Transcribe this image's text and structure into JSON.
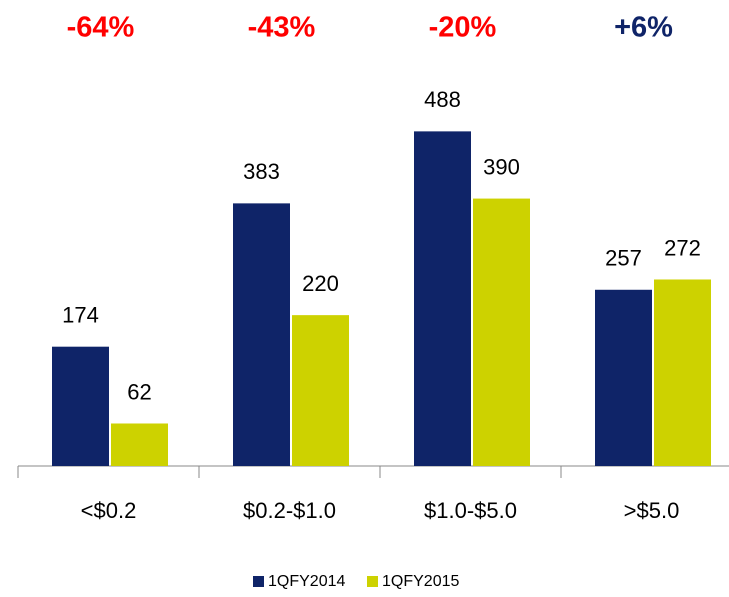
{
  "chart_data": {
    "type": "bar",
    "categories": [
      "<$0.2",
      "$0.2-$1.0",
      "$1.0-$5.0",
      ">$5.0"
    ],
    "series": [
      {
        "name": "1QFY2014",
        "color": "#0f2468",
        "values": [
          174,
          383,
          488,
          257
        ]
      },
      {
        "name": "1QFY2015",
        "color": "#cdd200",
        "values": [
          62,
          220,
          390,
          272
        ]
      }
    ],
    "annotations": [
      {
        "text": "-64%",
        "color": "#ff0000"
      },
      {
        "text": "-43%",
        "color": "#ff0000"
      },
      {
        "text": "-20%",
        "color": "#ff0000"
      },
      {
        "text": "+6%",
        "color": "#0f2468"
      }
    ],
    "ylim": [
      0,
      560
    ],
    "legend": "bottom"
  }
}
